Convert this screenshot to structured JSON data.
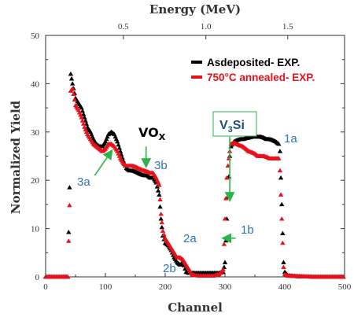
{
  "chart_data": {
    "type": "scatter",
    "xlabel": "Channel",
    "ylabel": "Normalized Yield",
    "top_xlabel": "Energy (MeV)",
    "xlim": [
      0,
      500
    ],
    "ylim": [
      0,
      50
    ],
    "x_ticks": [
      "0",
      "100",
      "200",
      "300",
      "400",
      "500"
    ],
    "y_ticks": [
      "0",
      "10",
      "20",
      "30",
      "40",
      "50"
    ],
    "top_ticks": [
      {
        "channel": 130,
        "label": "0.5"
      },
      {
        "channel": 268,
        "label": "1.0"
      },
      {
        "channel": 405,
        "label": "1.5"
      }
    ],
    "grid": false,
    "legend_position": "top-right",
    "legend": [
      {
        "label": "Asdeposited- EXP.",
        "color": "#000000",
        "text_color": "#000000"
      },
      {
        "label": "750°C annealed- EXP.",
        "color": "#e8111a",
        "text_color": "#e8111a"
      }
    ],
    "series": [
      {
        "name": "Asdeposited- EXP.",
        "color": "#000000",
        "points": [
          [
            0,
            0
          ],
          [
            37,
            0
          ],
          [
            40,
            18.5
          ],
          [
            42,
            42
          ],
          [
            45,
            40
          ],
          [
            50,
            37
          ],
          [
            55,
            36
          ],
          [
            60,
            35
          ],
          [
            65,
            33
          ],
          [
            70,
            31
          ],
          [
            75,
            30
          ],
          [
            80,
            28.5
          ],
          [
            85,
            27.5
          ],
          [
            90,
            27
          ],
          [
            95,
            27
          ],
          [
            100,
            28
          ],
          [
            105,
            29.5
          ],
          [
            110,
            30
          ],
          [
            115,
            29.5
          ],
          [
            120,
            28
          ],
          [
            125,
            26
          ],
          [
            130,
            24
          ],
          [
            135,
            22.5
          ],
          [
            140,
            22
          ],
          [
            145,
            22
          ],
          [
            150,
            21.8
          ],
          [
            155,
            21.5
          ],
          [
            160,
            21.2
          ],
          [
            165,
            21
          ],
          [
            170,
            21
          ],
          [
            175,
            20.5
          ],
          [
            180,
            20.5
          ],
          [
            185,
            19.5
          ],
          [
            190,
            17
          ],
          [
            193,
            12
          ],
          [
            196,
            8.5
          ],
          [
            200,
            7
          ],
          [
            205,
            6.5
          ],
          [
            210,
            5.5
          ],
          [
            215,
            4
          ],
          [
            220,
            3
          ],
          [
            225,
            2.5
          ],
          [
            230,
            3
          ],
          [
            235,
            1
          ],
          [
            240,
            0.8
          ],
          [
            245,
            0.8
          ],
          [
            250,
            0.8
          ],
          [
            260,
            0.8
          ],
          [
            270,
            0.8
          ],
          [
            280,
            0.8
          ],
          [
            290,
            0.8
          ],
          [
            297,
            1
          ],
          [
            300,
            3
          ],
          [
            303,
            12
          ],
          [
            305,
            16.5
          ],
          [
            308,
            25
          ],
          [
            310,
            27
          ],
          [
            315,
            28
          ],
          [
            320,
            28.3
          ],
          [
            325,
            28.5
          ],
          [
            330,
            28.5
          ],
          [
            335,
            28.7
          ],
          [
            340,
            28.8
          ],
          [
            345,
            29
          ],
          [
            350,
            29
          ],
          [
            355,
            29
          ],
          [
            360,
            29
          ],
          [
            365,
            28.8
          ],
          [
            370,
            28.5
          ],
          [
            375,
            28.5
          ],
          [
            380,
            28.3
          ],
          [
            385,
            28
          ],
          [
            390,
            27.5
          ],
          [
            392,
            26
          ],
          [
            395,
            15
          ],
          [
            398,
            3
          ],
          [
            400,
            1
          ],
          [
            405,
            0.3
          ],
          [
            420,
            0.1
          ],
          [
            450,
            0
          ],
          [
            500,
            0
          ]
        ]
      },
      {
        "name": "750°C annealed- EXP.",
        "color": "#e8111a",
        "points": [
          [
            0,
            0
          ],
          [
            37,
            0
          ],
          [
            40,
            14.8
          ],
          [
            42,
            38.5
          ],
          [
            45,
            39
          ],
          [
            50,
            35.5
          ],
          [
            55,
            34.5
          ],
          [
            60,
            33
          ],
          [
            65,
            31
          ],
          [
            70,
            29.5
          ],
          [
            75,
            28.5
          ],
          [
            80,
            27.5
          ],
          [
            85,
            27
          ],
          [
            90,
            26.5
          ],
          [
            95,
            26
          ],
          [
            100,
            26.5
          ],
          [
            105,
            27.5
          ],
          [
            110,
            27.5
          ],
          [
            115,
            27
          ],
          [
            120,
            26
          ],
          [
            125,
            24.5
          ],
          [
            130,
            23.5
          ],
          [
            135,
            23
          ],
          [
            140,
            23
          ],
          [
            145,
            23
          ],
          [
            150,
            22.8
          ],
          [
            155,
            22.5
          ],
          [
            160,
            22.2
          ],
          [
            165,
            22
          ],
          [
            170,
            21.8
          ],
          [
            175,
            21.5
          ],
          [
            180,
            21.5
          ],
          [
            185,
            20.5
          ],
          [
            190,
            19
          ],
          [
            193,
            13
          ],
          [
            196,
            9.5
          ],
          [
            200,
            8
          ],
          [
            205,
            7
          ],
          [
            210,
            6
          ],
          [
            215,
            5
          ],
          [
            220,
            4
          ],
          [
            225,
            4
          ],
          [
            230,
            3.5
          ],
          [
            235,
            2.5
          ],
          [
            240,
            1.5
          ],
          [
            245,
            0.5
          ],
          [
            250,
            0.3
          ],
          [
            260,
            0.2
          ],
          [
            270,
            0.2
          ],
          [
            280,
            0.2
          ],
          [
            290,
            0.5
          ],
          [
            297,
            1.5
          ],
          [
            300,
            12
          ],
          [
            303,
            20.5
          ],
          [
            305,
            23
          ],
          [
            308,
            26
          ],
          [
            310,
            27.5
          ],
          [
            315,
            27.8
          ],
          [
            320,
            27.5
          ],
          [
            325,
            27.2
          ],
          [
            330,
            27
          ],
          [
            335,
            26.5
          ],
          [
            340,
            26
          ],
          [
            345,
            25.8
          ],
          [
            350,
            25.5
          ],
          [
            355,
            25
          ],
          [
            360,
            25
          ],
          [
            365,
            25
          ],
          [
            370,
            24.8
          ],
          [
            375,
            24.5
          ],
          [
            380,
            24.5
          ],
          [
            385,
            24.5
          ],
          [
            390,
            24.5
          ],
          [
            392,
            22
          ],
          [
            395,
            12
          ],
          [
            398,
            2
          ],
          [
            400,
            0.5
          ],
          [
            405,
            0.2
          ],
          [
            450,
            0
          ],
          [
            500,
            0
          ]
        ]
      }
    ],
    "annotations": [
      {
        "text": "1a",
        "x": 413,
        "y": 27.6,
        "color": "#2e75b6"
      },
      {
        "text": "1b",
        "x": 335,
        "y": 9.3,
        "color": "#2e75b6",
        "arrow_from": [
          318,
          8
        ],
        "arrow_to": [
          298,
          8
        ],
        "arrow_color": "#2db34a"
      },
      {
        "text": "2a",
        "x": 237,
        "y": 7.6,
        "color": "#2e75b6"
      },
      {
        "text": "2b",
        "x": 212,
        "y": 1.9,
        "color": "#2e75b6"
      },
      {
        "text": "3a",
        "x": 66,
        "y": 18.8,
        "color": "#2e75b6",
        "arrow_from": [
          82,
          21
        ],
        "arrow_to": [
          110,
          26
        ],
        "arrow_color": "#2db34a"
      },
      {
        "text": "3b",
        "x": 195,
        "y": 22.2,
        "color": "#2e75b6"
      },
      {
        "text": "VOX",
        "x": 170,
        "y": 28.4,
        "color": "#000000",
        "arrow_from": [
          168,
          27
        ],
        "arrow_to": [
          168,
          23
        ],
        "arrow_color": "#2db34a"
      },
      {
        "text": "V3Si",
        "x": 298,
        "y": 31.4,
        "color": "#1f4e79",
        "boxed": true,
        "arrow_from": [
          308,
          29
        ],
        "arrow_to": [
          308,
          16
        ],
        "arrow_color": "#2db34a"
      }
    ],
    "annotation_labels": {
      "vox_main": "VO",
      "vox_sub": "X",
      "v3si_pre": "V",
      "v3si_sub": "3",
      "v3si_post": "Si"
    }
  }
}
